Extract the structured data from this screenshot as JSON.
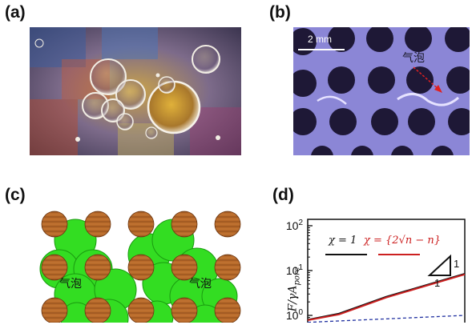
{
  "panels": {
    "a": {
      "label": "(a)"
    },
    "b": {
      "label": "(b)",
      "scale_bar": "2 mm",
      "annotation": "气泡"
    },
    "c": {
      "label": "(c)",
      "bubble_label_left": "气泡",
      "bubble_label_right": "气泡"
    },
    "d": {
      "label": "(d)",
      "triangle_label_top": "1",
      "triangle_label_bottom": "1",
      "ylabel": "F/γA",
      "ylabel_sub": "pore"
    }
  },
  "chart_data": {
    "type": "line",
    "title": "",
    "xlabel": "",
    "ylabel": "F/γA_pore",
    "yscale": "log",
    "ylim": [
      1,
      100
    ],
    "yticks": [
      "10",
      "10",
      "10"
    ],
    "ytick_exponents": [
      "2",
      "1",
      "0"
    ],
    "ytick_values": [
      100,
      10,
      1
    ],
    "legend": {
      "placement": "top",
      "entries": [
        {
          "label": "χ = 1",
          "color": "#111111"
        },
        {
          "label": "χ = {2√n − n}",
          "color": "#cc2020"
        }
      ]
    },
    "series": [
      {
        "name": "χ = 1",
        "color": "#111111",
        "style": "solid",
        "values": [
          [
            0.0,
            0.8
          ],
          [
            0.2,
            1.1
          ],
          [
            0.5,
            2.6
          ],
          [
            1.0,
            8.5
          ]
        ]
      },
      {
        "name": "χ = {2√n − n}",
        "color": "#cc2020",
        "style": "solid",
        "values": [
          [
            0.0,
            0.78
          ],
          [
            0.2,
            1.05
          ],
          [
            0.5,
            2.5
          ],
          [
            1.0,
            8.2
          ]
        ]
      },
      {
        "color": "#2030a0",
        "style": "dashed",
        "values": [
          [
            0.0,
            0.7
          ],
          [
            1.0,
            1.0
          ]
        ]
      }
    ],
    "colors": {
      "black": "#111111",
      "red": "#cc2020",
      "blue": "#2030a0"
    }
  }
}
